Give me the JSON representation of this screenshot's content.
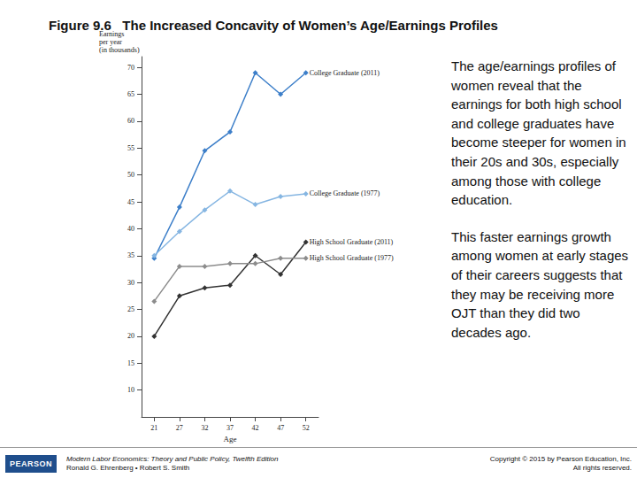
{
  "chart_data": {
    "type": "line",
    "title": "Figure 9.6   The Increased Concavity of Women’s Age/Earnings Profiles",
    "x_label": "Age",
    "y_label": "Earnings\nper year\n(in thousands)",
    "categories": [
      "21",
      "27",
      "32",
      "37",
      "42",
      "47",
      "52"
    ],
    "series": [
      {
        "name": "College Graduate (2011)",
        "color": "#3d7fc9",
        "marker": "diamond",
        "values": [
          34.5,
          44,
          54.5,
          58,
          69,
          65,
          69
        ]
      },
      {
        "name": "College Graduate (1977)",
        "color": "#86b6e2",
        "marker": "diamond",
        "values": [
          35,
          39.5,
          43.5,
          47,
          44.5,
          46,
          46.5
        ]
      },
      {
        "name": "High School Graduate (2011)",
        "color": "#333333",
        "marker": "diamond",
        "values": [
          20,
          27.5,
          29,
          29.5,
          35,
          31.5,
          37.5
        ]
      },
      {
        "name": "High School Graduate (1977)",
        "color": "#8c8c8c",
        "marker": "diamond",
        "values": [
          26.5,
          33,
          33,
          33.5,
          33.5,
          34.5,
          34.5
        ]
      }
    ],
    "ylim": [
      5,
      72
    ],
    "yticks": [
      10,
      15,
      20,
      25,
      30,
      35,
      40,
      45,
      50,
      55,
      60,
      65,
      70
    ],
    "grid": false
  },
  "slide": {
    "text": [
      "The age/earnings profiles of women reveal that the earnings for both high school and college graduates have become steeper for women in their 20s and 30s, especially among those with college education.",
      "This faster earnings growth among women at early stages of their careers suggests that they may be receiving more OJT than they did two decades ago."
    ],
    "footer": {
      "logo": "PEARSON",
      "book": "Modern Labor Economics: Theory and Public Policy, Twelfth Edition",
      "authors": "Ronald G. Ehrenberg • Robert S. Smith",
      "copyright": "Copyright © 2015 by Pearson Education, Inc.",
      "rights": "All rights reserved."
    }
  }
}
